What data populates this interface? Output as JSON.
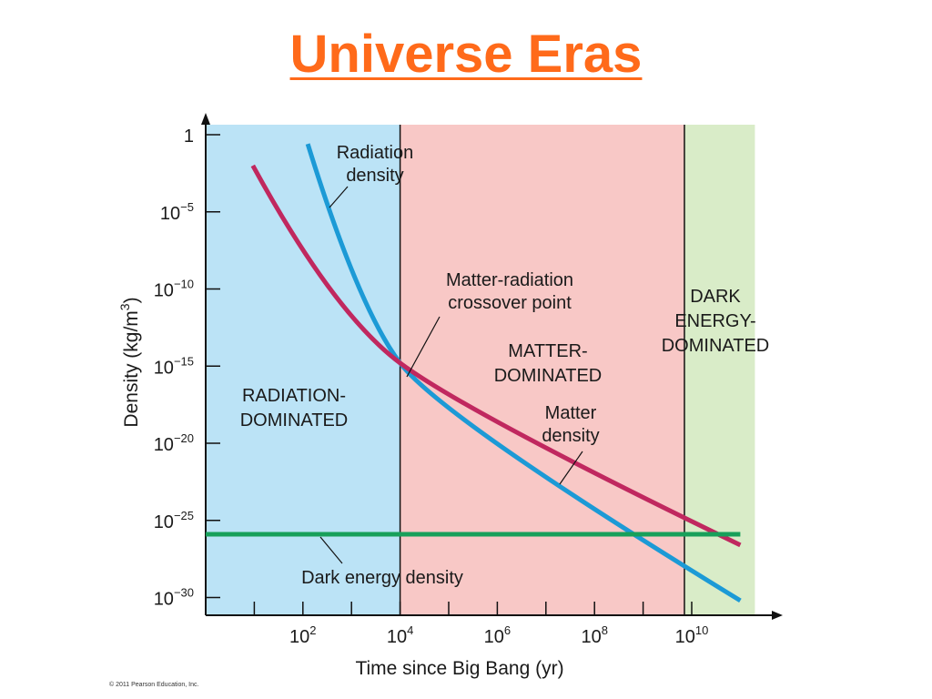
{
  "slide": {
    "title": "Universe Eras",
    "copyright": "© 2011 Pearson Education, Inc."
  },
  "colors": {
    "title": "#ff6a1a",
    "radiation_era_bg": "#bbe3f6",
    "matter_era_bg": "#f8c8c6",
    "dark_energy_era_bg": "#d9ecc8",
    "radiation_curve": "#1c9ad6",
    "matter_curve": "#c0285f",
    "dark_energy_line": "#18a05a"
  },
  "chart_data": {
    "type": "line",
    "xlabel": "Time since Big Bang (yr)",
    "ylabel": "Density (kg/m3)",
    "xscale": "log",
    "yscale": "log",
    "xlim_log10": [
      0,
      11.3
    ],
    "ylim_log10": [
      -31,
      1.8
    ],
    "x_ticks": [
      {
        "exp": 2,
        "base": "10",
        "sup": "2"
      },
      {
        "exp": 4,
        "base": "10",
        "sup": "4"
      },
      {
        "exp": 6,
        "base": "10",
        "sup": "6"
      },
      {
        "exp": 8,
        "base": "10",
        "sup": "8"
      },
      {
        "exp": 10,
        "base": "10",
        "sup": "10"
      }
    ],
    "y_ticks": [
      {
        "exp": 0,
        "base": "1",
        "sup": ""
      },
      {
        "exp": -5,
        "base": "10",
        "sup": "−5"
      },
      {
        "exp": -10,
        "base": "10",
        "sup": "−10"
      },
      {
        "exp": -15,
        "base": "10",
        "sup": "−15"
      },
      {
        "exp": -20,
        "base": "10",
        "sup": "−20"
      },
      {
        "exp": -25,
        "base": "10",
        "sup": "−25"
      },
      {
        "exp": -30,
        "base": "10",
        "sup": "−30"
      }
    ],
    "series": [
      {
        "key": "radiation",
        "points_log10": [
          [
            2.1,
            -0.6
          ],
          [
            4.0,
            -14.8
          ],
          [
            11.0,
            -30.2
          ]
        ]
      },
      {
        "key": "matter",
        "points_log10": [
          [
            0.97,
            -2.0
          ],
          [
            4.0,
            -14.8
          ],
          [
            11.0,
            -26.6
          ]
        ]
      },
      {
        "key": "dark_energy",
        "points_log10": [
          [
            0,
            -25.9
          ],
          [
            11.0,
            -25.9
          ]
        ]
      }
    ],
    "eras": [
      {
        "key": "radiation",
        "from_log10": 0,
        "to_log10": 4.0,
        "label_lines": [
          "RADIATION-",
          "DOMINATED"
        ]
      },
      {
        "key": "matter",
        "from_log10": 4.0,
        "to_log10": 9.85,
        "label_lines": [
          "MATTER-",
          "DOMINATED"
        ]
      },
      {
        "key": "dark_energy",
        "from_log10": 9.85,
        "to_log10": 11.3,
        "label_lines": [
          "DARK",
          "ENERGY-",
          "DOMINATED"
        ]
      }
    ],
    "annotations": {
      "radiation_density": [
        "Radiation",
        "density"
      ],
      "matter_density": [
        "Matter",
        "density"
      ],
      "crossover": [
        "Matter-radiation",
        "crossover point"
      ],
      "dark_energy_density": "Dark energy density"
    }
  }
}
